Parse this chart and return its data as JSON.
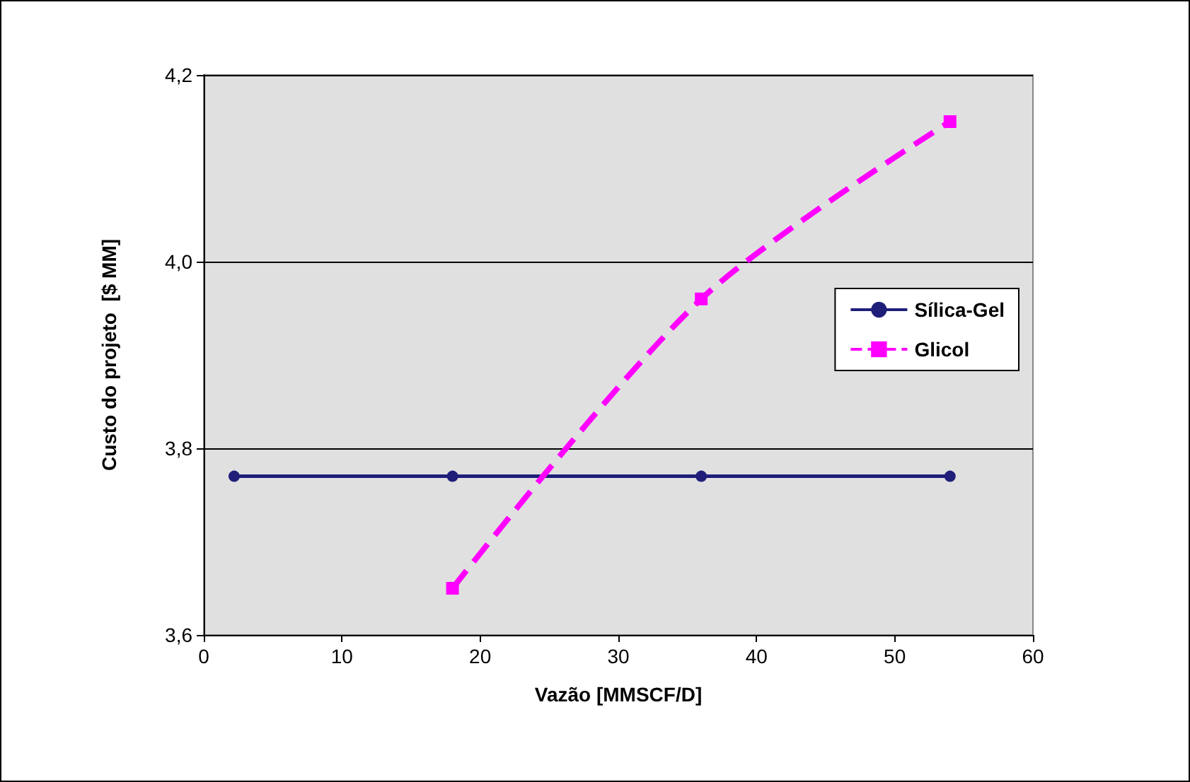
{
  "chart_data": {
    "type": "line",
    "xlabel": "Vazão [MMSCF/D]",
    "ylabel": "Custo do projeto  [$ MM]",
    "xlim": [
      0,
      60
    ],
    "xticks": [
      0,
      10,
      20,
      30,
      40,
      50,
      60
    ],
    "ylim": [
      3.6,
      4.2
    ],
    "yticks": [
      {
        "value": 3.6,
        "label": "3,6"
      },
      {
        "value": 3.8,
        "label": "3,8"
      },
      {
        "value": 4.0,
        "label": "4,0"
      },
      {
        "value": 4.2,
        "label": "4,2"
      }
    ],
    "grid": "y",
    "legend": "right",
    "series": [
      {
        "name": "Sílica-Gel",
        "color": "#1f1f7a",
        "x": [
          2.2,
          18,
          36,
          54
        ],
        "values": [
          3.77,
          3.77,
          3.77,
          3.77
        ],
        "marker": "circle",
        "line_style": "solid"
      },
      {
        "name": "Glicol",
        "color": "#ff00ff",
        "x": [
          18,
          36,
          54
        ],
        "values": [
          3.65,
          3.96,
          4.15
        ],
        "marker": "square",
        "line_style": "dashed"
      }
    ]
  }
}
